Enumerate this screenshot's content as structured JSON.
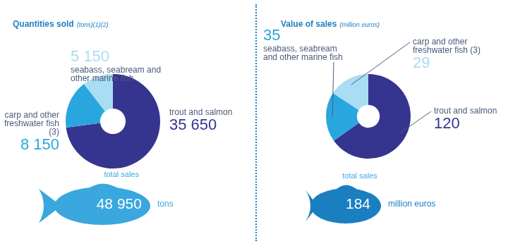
{
  "chart_data": [
    {
      "type": "doughnut",
      "title": "Quantities sold",
      "subtitle": "(tons)(1)(2)",
      "categories": [
        "trout and salmon",
        "carp and other freshwater fish (3)",
        "seabass, seabream and other marine fish"
      ],
      "values": [
        35650,
        8150,
        5150
      ],
      "value_labels": [
        "35 650",
        "8 150",
        "5 150"
      ],
      "colors": [
        "#35358f",
        "#2aa6df",
        "#a9ddf3"
      ],
      "data_labels": true,
      "legend": false,
      "total": {
        "label": "total sales",
        "value": 48950,
        "value_label": "48 950",
        "unit": "tons",
        "color": "#3aa7df"
      }
    },
    {
      "type": "doughnut",
      "title": "Value of sales",
      "subtitle": "(million euros)",
      "categories": [
        "trout and salmon",
        "seabass, seabream and other marine fish",
        "carp and other freshwater fish (3)"
      ],
      "values": [
        120,
        35,
        29
      ],
      "colors": [
        "#35358f",
        "#2aa6df",
        "#a9ddf3"
      ],
      "data_labels": true,
      "legend": false,
      "total": {
        "label": "total sales",
        "value": 184,
        "unit": "million euros",
        "color": "#1a7fc1"
      }
    }
  ]
}
